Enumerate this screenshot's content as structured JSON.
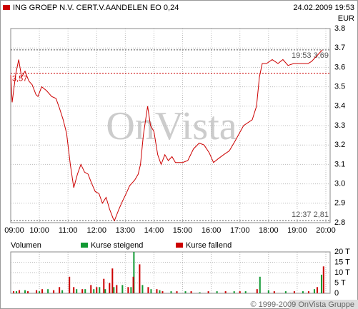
{
  "chart_data": [
    {
      "type": "line",
      "date": "24.02.2009 19:53",
      "currency": "EUR",
      "watermark": "OnVista",
      "grid": true,
      "x": [
        9.0,
        9.05,
        9.18,
        9.28,
        9.38,
        9.5,
        9.63,
        9.75,
        9.88,
        9.95,
        10.08,
        10.25,
        10.43,
        10.58,
        10.7,
        10.83,
        10.95,
        11.08,
        11.2,
        11.33,
        11.45,
        11.58,
        11.7,
        11.83,
        11.95,
        12.08,
        12.2,
        12.33,
        12.45,
        12.58,
        12.62,
        12.78,
        12.9,
        13.03,
        13.15,
        13.33,
        13.45,
        13.53,
        13.63,
        13.78,
        13.88,
        14.0,
        14.13,
        14.25,
        14.38,
        14.5,
        14.63,
        14.75,
        15.0,
        15.18,
        15.38,
        15.58,
        15.75,
        15.93,
        16.08,
        16.25,
        16.43,
        16.63,
        16.83,
        17.13,
        17.43,
        17.58,
        17.68,
        17.78,
        17.93,
        18.13,
        18.33,
        18.5,
        18.68,
        18.88,
        19.38,
        19.5,
        19.88
      ],
      "series": [
        {
          "name": "ING GROEP N.V. CERT.V.AANDELEN EO 0,24",
          "color": "#cc0000",
          "values": [
            3.56,
            3.42,
            3.57,
            3.64,
            3.55,
            3.58,
            3.53,
            3.51,
            3.46,
            3.45,
            3.5,
            3.48,
            3.45,
            3.44,
            3.39,
            3.33,
            3.26,
            3.1,
            2.98,
            3.05,
            3.1,
            3.06,
            3.05,
            3.0,
            2.96,
            2.95,
            2.9,
            2.93,
            2.87,
            2.82,
            2.81,
            2.87,
            2.91,
            2.95,
            2.99,
            3.02,
            3.05,
            3.1,
            3.25,
            3.4,
            3.3,
            3.27,
            3.15,
            3.1,
            3.15,
            3.12,
            3.14,
            3.11,
            3.11,
            3.12,
            3.18,
            3.21,
            3.2,
            3.16,
            3.11,
            3.13,
            3.15,
            3.17,
            3.22,
            3.3,
            3.33,
            3.4,
            3.55,
            3.62,
            3.62,
            3.64,
            3.62,
            3.64,
            3.61,
            3.62,
            3.62,
            3.63,
            3.69
          ]
        }
      ],
      "annotations": [
        {
          "value": 3.69,
          "label": "19:53 3,69",
          "position": "right",
          "color": "#555555"
        },
        {
          "value": 2.81,
          "label": "12:37 2,81",
          "position": "right",
          "color": "#555555"
        },
        {
          "value": 3.57,
          "label": "3,57",
          "position": "left",
          "color": "#cc0000"
        }
      ],
      "xlim": [
        9,
        20.15
      ],
      "xticks": [
        {
          "value": 9,
          "label": "09:00"
        },
        {
          "value": 10,
          "label": "10:00"
        },
        {
          "value": 11,
          "label": "11:00"
        },
        {
          "value": 12,
          "label": "12:00"
        },
        {
          "value": 13,
          "label": "13:00"
        },
        {
          "value": 14,
          "label": "14:00"
        },
        {
          "value": 15,
          "label": "15:00"
        },
        {
          "value": 16,
          "label": "16:00"
        },
        {
          "value": 17,
          "label": "17:00"
        },
        {
          "value": 18,
          "label": "18:00"
        },
        {
          "value": 19,
          "label": "19:00"
        },
        {
          "value": 20,
          "label": "20:00"
        }
      ],
      "ylim": [
        2.8,
        3.8
      ],
      "yticks": [
        2.8,
        2.9,
        {
          "value": 3,
          "label": "3.0"
        },
        3.1,
        3.2,
        3.3,
        3.4,
        3.5,
        3.6,
        3.7,
        3.8
      ]
    },
    {
      "type": "bar",
      "title": "Volumen",
      "grid": true,
      "series": [
        {
          "name": "Kurse steigend",
          "color": "#119933",
          "x": [
            9.2,
            9.5,
            10.0,
            10.3,
            10.8,
            11.3,
            11.6,
            11.9,
            12.1,
            12.3,
            12.6,
            12.9,
            13.2,
            13.3,
            13.6,
            13.9,
            14.2,
            14.6,
            15.1,
            15.6,
            16.2,
            16.8,
            17.2,
            17.7,
            18.0,
            18.6,
            19.2,
            19.6,
            19.85
          ],
          "values": [
            1,
            1.5,
            1,
            2,
            1.5,
            2,
            2,
            2,
            3,
            2,
            3,
            4,
            3,
            20,
            4,
            2,
            1.5,
            1,
            1,
            0.5,
            1,
            1,
            1,
            8,
            1.5,
            1,
            1,
            2,
            9
          ]
        },
        {
          "name": "Kurse fallend",
          "color": "#cc0000",
          "x": [
            9.1,
            9.3,
            9.6,
            9.9,
            10.1,
            10.5,
            10.7,
            11.05,
            11.2,
            11.5,
            11.8,
            12.0,
            12.25,
            12.45,
            12.55,
            12.7,
            13.1,
            13.28,
            13.5,
            13.8,
            14.1,
            14.3,
            14.8,
            15.3,
            15.9,
            16.5,
            17.0,
            17.6,
            18.2,
            18.9,
            19.4,
            19.7,
            19.92
          ],
          "values": [
            1,
            1.5,
            1,
            1.5,
            2,
            1.5,
            3,
            8,
            3,
            2,
            4,
            3,
            7,
            5,
            12,
            4,
            3,
            8,
            14,
            3,
            2,
            1,
            1,
            1,
            1,
            1,
            1,
            2,
            1,
            1,
            1,
            3,
            13
          ]
        }
      ],
      "xlim": [
        9,
        20.15
      ],
      "ylim": [
        0,
        20
      ],
      "yticks": [
        {
          "value": 0,
          "label": "0"
        },
        {
          "value": 5,
          "label": "5 T"
        },
        {
          "value": 10,
          "label": "10 T"
        },
        {
          "value": 15,
          "label": "15 T"
        },
        {
          "value": 20,
          "label": "20 T"
        }
      ]
    }
  ],
  "footer": "© 1999-2009 OnVista Gruppe"
}
